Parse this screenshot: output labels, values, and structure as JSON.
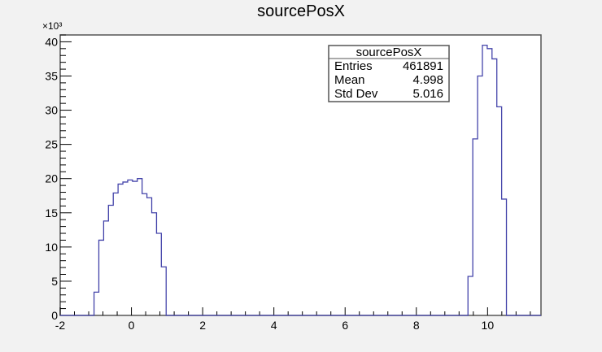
{
  "chart_data": {
    "type": "histogram",
    "title": "sourcePosX",
    "xlabel": "",
    "ylabel": "",
    "y_multiplier_label": "×10³",
    "xlim": [
      -2,
      11.5
    ],
    "ylim": [
      0,
      41000
    ],
    "x_ticks": [
      -2,
      0,
      2,
      4,
      6,
      8,
      10
    ],
    "y_ticks": [
      0,
      5,
      10,
      15,
      20,
      25,
      30,
      35,
      40
    ],
    "y_tick_scale": 1000,
    "bin_width": 0.135,
    "grid": false,
    "line_color": "#4444aa",
    "bins": [
      {
        "x0": -1.05,
        "y": 3400
      },
      {
        "x0": -0.915,
        "y": 11000
      },
      {
        "x0": -0.78,
        "y": 13800
      },
      {
        "x0": -0.645,
        "y": 16100
      },
      {
        "x0": -0.51,
        "y": 17900
      },
      {
        "x0": -0.375,
        "y": 19200
      },
      {
        "x0": -0.24,
        "y": 19500
      },
      {
        "x0": -0.105,
        "y": 19800
      },
      {
        "x0": 0.03,
        "y": 19600
      },
      {
        "x0": 0.165,
        "y": 20000
      },
      {
        "x0": 0.3,
        "y": 17800
      },
      {
        "x0": 0.435,
        "y": 17200
      },
      {
        "x0": 0.57,
        "y": 15000
      },
      {
        "x0": 0.705,
        "y": 12000
      },
      {
        "x0": 0.84,
        "y": 7100
      },
      {
        "x0": 9.45,
        "y": 5700
      },
      {
        "x0": 9.585,
        "y": 25800
      },
      {
        "x0": 9.72,
        "y": 35000
      },
      {
        "x0": 9.855,
        "y": 39500
      },
      {
        "x0": 9.99,
        "y": 39000
      },
      {
        "x0": 10.125,
        "y": 37500
      },
      {
        "x0": 10.26,
        "y": 30500
      },
      {
        "x0": 10.395,
        "y": 17000
      }
    ],
    "stats_box": {
      "title": "sourcePosX",
      "placement": "top-right",
      "rows": [
        {
          "label": "Entries",
          "value": "461891"
        },
        {
          "label": "Mean",
          "value": "4.998"
        },
        {
          "label": "Std Dev",
          "value": "5.016"
        }
      ]
    }
  }
}
